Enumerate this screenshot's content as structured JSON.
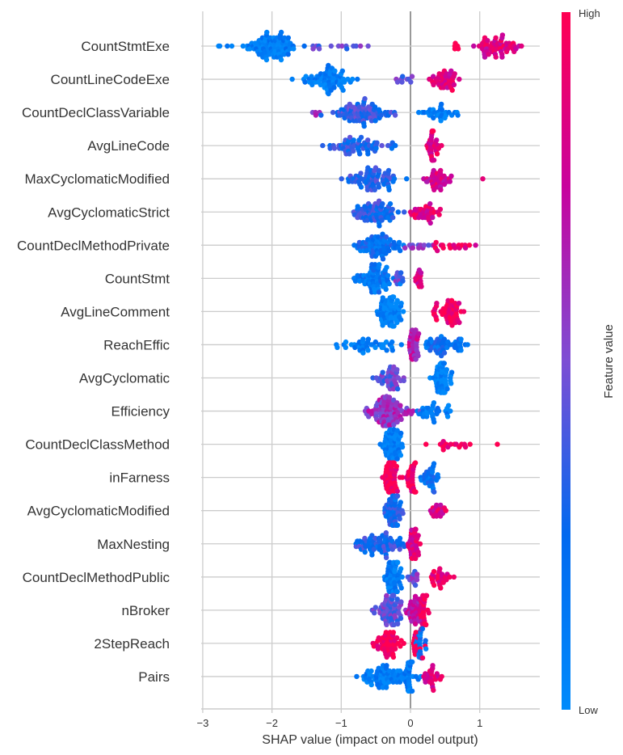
{
  "chart_data": {
    "type": "scatter",
    "subtype": "shap-beeswarm",
    "title": "",
    "xlabel": "SHAP value (impact on model output)",
    "ylabel": "",
    "xlim": [
      -3.0,
      1.85
    ],
    "xticks": [
      -3,
      -2,
      -1,
      0,
      1
    ],
    "xtick_labels": [
      "−3",
      "−2",
      "−1",
      "0",
      "1"
    ],
    "grid": true,
    "colorbar": {
      "title": "Feature value",
      "high_label": "High",
      "low_label": "Low",
      "colors": [
        "#008afb",
        "#0069ef",
        "#7d4ed4",
        "#c8029d",
        "#ff0052"
      ]
    },
    "features": [
      {
        "name": "CountStmtExe",
        "clusters": [
          {
            "center": -2.05,
            "spread": 0.45,
            "n": 90,
            "value": 0.1
          },
          {
            "center": -1.0,
            "spread": 0.55,
            "n": 14,
            "value": 0.45
          },
          {
            "center": -2.75,
            "spread": 0.05,
            "n": 2,
            "value": 0.05
          },
          {
            "center": 0.65,
            "spread": 0.12,
            "n": 5,
            "value": 0.95
          },
          {
            "center": 1.25,
            "spread": 0.3,
            "n": 55,
            "value": 0.85
          }
        ]
      },
      {
        "name": "CountLineCodeExe",
        "clusters": [
          {
            "center": -1.2,
            "spread": 0.35,
            "n": 70,
            "value": 0.1
          },
          {
            "center": -0.1,
            "spread": 0.2,
            "n": 10,
            "value": 0.45
          },
          {
            "center": 0.5,
            "spread": 0.2,
            "n": 40,
            "value": 0.85
          }
        ]
      },
      {
        "name": "CountDeclClassVariable",
        "clusters": [
          {
            "center": -0.7,
            "spread": 0.45,
            "n": 80,
            "value": 0.35
          },
          {
            "center": 0.4,
            "spread": 0.3,
            "n": 30,
            "value": 0.1
          },
          {
            "center": -1.35,
            "spread": 0.1,
            "n": 4,
            "value": 0.6
          }
        ]
      },
      {
        "name": "AvgLineCode",
        "clusters": [
          {
            "center": -0.75,
            "spread": 0.45,
            "n": 60,
            "value": 0.3
          },
          {
            "center": 0.3,
            "spread": 0.12,
            "n": 35,
            "value": 0.85
          }
        ]
      },
      {
        "name": "MaxCyclomaticModified",
        "clusters": [
          {
            "center": -0.6,
            "spread": 0.4,
            "n": 70,
            "value": 0.3
          },
          {
            "center": 0.4,
            "spread": 0.2,
            "n": 35,
            "value": 0.8
          },
          {
            "center": 1.05,
            "spread": 0.02,
            "n": 1,
            "value": 0.75
          }
        ]
      },
      {
        "name": "AvgCyclomaticStrict",
        "clusters": [
          {
            "center": -0.5,
            "spread": 0.35,
            "n": 70,
            "value": 0.3
          },
          {
            "center": 0.2,
            "spread": 0.2,
            "n": 35,
            "value": 0.85
          }
        ]
      },
      {
        "name": "CountDeclMethodPrivate",
        "clusters": [
          {
            "center": -0.45,
            "spread": 0.35,
            "n": 70,
            "value": 0.2
          },
          {
            "center": 0.1,
            "spread": 0.15,
            "n": 12,
            "value": 0.55
          },
          {
            "center": 0.6,
            "spread": 0.3,
            "n": 18,
            "value": 0.9
          }
        ]
      },
      {
        "name": "CountStmt",
        "clusters": [
          {
            "center": -0.5,
            "spread": 0.25,
            "n": 70,
            "value": 0.15
          },
          {
            "center": -0.15,
            "spread": 0.15,
            "n": 10,
            "value": 0.45
          },
          {
            "center": 0.12,
            "spread": 0.05,
            "n": 15,
            "value": 0.85
          }
        ]
      },
      {
        "name": "AvgLineComment",
        "clusters": [
          {
            "center": -0.3,
            "spread": 0.18,
            "n": 70,
            "value": 0.05
          },
          {
            "center": 0.55,
            "spread": 0.25,
            "n": 50,
            "value": 0.95
          }
        ]
      },
      {
        "name": "ReachEffic",
        "clusters": [
          {
            "center": -0.6,
            "spread": 0.5,
            "n": 40,
            "value": 0.1
          },
          {
            "center": 0.05,
            "spread": 0.08,
            "n": 40,
            "value": 0.7
          },
          {
            "center": 0.5,
            "spread": 0.3,
            "n": 50,
            "value": 0.2
          }
        ]
      },
      {
        "name": "AvgCyclomatic",
        "clusters": [
          {
            "center": -0.3,
            "spread": 0.2,
            "n": 40,
            "value": 0.45
          },
          {
            "center": 0.45,
            "spread": 0.12,
            "n": 60,
            "value": 0.05
          }
        ]
      },
      {
        "name": "Efficiency",
        "clusters": [
          {
            "center": -0.3,
            "spread": 0.3,
            "n": 90,
            "value": 0.6
          },
          {
            "center": 0.35,
            "spread": 0.25,
            "n": 30,
            "value": 0.12
          }
        ]
      },
      {
        "name": "CountDeclClassMethod",
        "clusters": [
          {
            "center": -0.25,
            "spread": 0.15,
            "n": 70,
            "value": 0.08
          },
          {
            "center": 0.55,
            "spread": 0.3,
            "n": 16,
            "value": 0.95
          },
          {
            "center": 1.25,
            "spread": 0.02,
            "n": 1,
            "value": 0.95
          }
        ]
      },
      {
        "name": "inFarness",
        "clusters": [
          {
            "center": -0.3,
            "spread": 0.12,
            "n": 60,
            "value": 0.98
          },
          {
            "center": 0.0,
            "spread": 0.08,
            "n": 30,
            "value": 0.95
          },
          {
            "center": 0.3,
            "spread": 0.12,
            "n": 30,
            "value": 0.2
          }
        ]
      },
      {
        "name": "AvgCyclomaticModified",
        "clusters": [
          {
            "center": -0.25,
            "spread": 0.12,
            "n": 70,
            "value": 0.25
          },
          {
            "center": 0.4,
            "spread": 0.12,
            "n": 18,
            "value": 0.85
          }
        ]
      },
      {
        "name": "MaxNesting",
        "clusters": [
          {
            "center": -0.45,
            "spread": 0.35,
            "n": 70,
            "value": 0.3
          },
          {
            "center": 0.05,
            "spread": 0.12,
            "n": 40,
            "value": 0.85
          }
        ]
      },
      {
        "name": "CountDeclMethodPublic",
        "clusters": [
          {
            "center": -0.25,
            "spread": 0.12,
            "n": 60,
            "value": 0.12
          },
          {
            "center": 0.05,
            "spread": 0.1,
            "n": 12,
            "value": 0.5
          },
          {
            "center": 0.4,
            "spread": 0.2,
            "n": 25,
            "value": 0.9
          }
        ]
      },
      {
        "name": "nBroker",
        "clusters": [
          {
            "center": -0.3,
            "spread": 0.2,
            "n": 70,
            "value": 0.45
          },
          {
            "center": 0.05,
            "spread": 0.12,
            "n": 30,
            "value": 0.7
          },
          {
            "center": 0.2,
            "spread": 0.08,
            "n": 30,
            "value": 0.95
          }
        ]
      },
      {
        "name": "2StepReach",
        "clusters": [
          {
            "center": -0.3,
            "spread": 0.2,
            "n": 50,
            "value": 0.98
          },
          {
            "center": 0.1,
            "spread": 0.15,
            "n": 20,
            "value": 0.95
          },
          {
            "center": 0.15,
            "spread": 0.06,
            "n": 25,
            "value": 0.15
          }
        ]
      },
      {
        "name": "Pairs",
        "clusters": [
          {
            "center": -0.35,
            "spread": 0.35,
            "n": 70,
            "value": 0.1
          },
          {
            "center": -0.02,
            "spread": 0.06,
            "n": 30,
            "value": 0.1
          },
          {
            "center": 0.3,
            "spread": 0.15,
            "n": 25,
            "value": 0.85
          }
        ]
      }
    ]
  }
}
